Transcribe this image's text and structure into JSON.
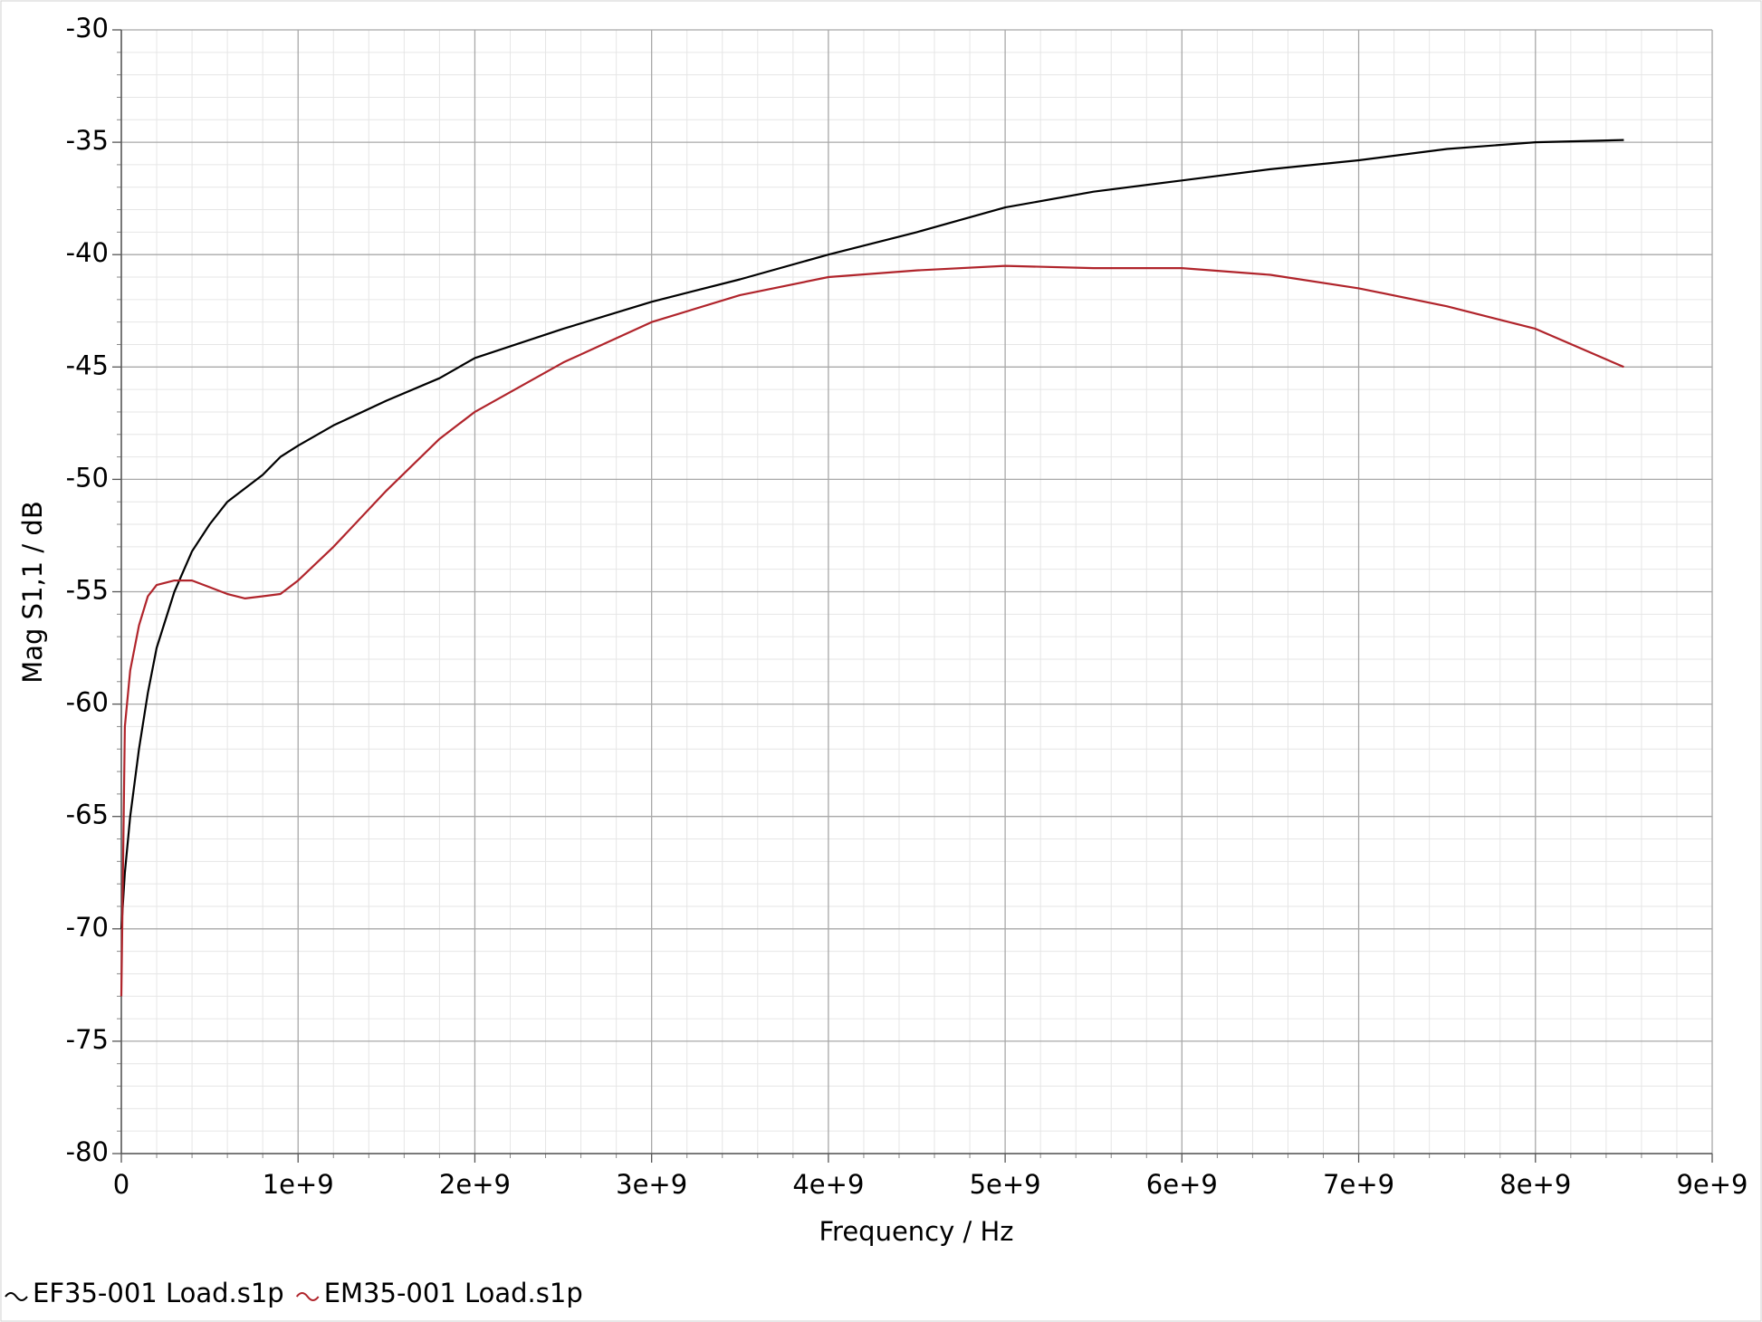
{
  "chart_data": {
    "type": "line",
    "x_label": "Frequency / Hz",
    "y_label": "Mag S1,1 / dB",
    "x": [
      0,
      20000000,
      50000000,
      100000000,
      150000000,
      200000000,
      300000000,
      400000000,
      500000000,
      600000000,
      700000000,
      800000000,
      900000000,
      1000000000,
      1200000000,
      1500000000,
      1800000000,
      2000000000,
      2500000000,
      3000000000,
      3500000000,
      4000000000,
      4500000000,
      5000000000,
      5500000000,
      6000000000,
      6500000000,
      7000000000,
      7500000000,
      8000000000,
      8500000000
    ],
    "series": [
      {
        "name": "EF35-001 Load.s1p",
        "color": "#000000",
        "values": [
          -70,
          -67.5,
          -65,
          -62,
          -59.5,
          -57.5,
          -55,
          -53.2,
          -52,
          -51,
          -50.4,
          -49.8,
          -49,
          -48.5,
          -47.6,
          -46.5,
          -45.5,
          -44.6,
          -43.3,
          -42.1,
          -41.1,
          -40,
          -39,
          -37.9,
          -37.2,
          -36.7,
          -36.2,
          -35.8,
          -35.3,
          -35,
          -34.9
        ]
      },
      {
        "name": "EM35-001 Load.s1p",
        "color": "#b0242b",
        "values": [
          -73,
          -61,
          -58.5,
          -56.5,
          -55.2,
          -54.7,
          -54.5,
          -54.5,
          -54.8,
          -55.1,
          -55.3,
          -55.2,
          -55.1,
          -54.5,
          -53,
          -50.5,
          -48.2,
          -47,
          -44.8,
          -43,
          -41.8,
          -41,
          -40.7,
          -40.5,
          -40.6,
          -40.6,
          -40.9,
          -41.5,
          -42.3,
          -43.3,
          -45
        ]
      }
    ],
    "xlim": [
      0,
      9000000000
    ],
    "xticks": [
      0,
      {
        "value": 1000000000,
        "label": "1e+9"
      },
      {
        "value": 2000000000,
        "label": "2e+9"
      },
      {
        "value": 3000000000,
        "label": "3e+9"
      },
      {
        "value": 4000000000,
        "label": "4e+9"
      },
      {
        "value": 5000000000,
        "label": "5e+9"
      },
      {
        "value": 6000000000,
        "label": "6e+9"
      },
      {
        "value": 7000000000,
        "label": "7e+9"
      },
      {
        "value": 8000000000,
        "label": "8e+9"
      },
      {
        "value": 9000000000,
        "label": "9e+9"
      }
    ],
    "ylim": [
      -80,
      -30
    ],
    "yticks": [
      -80,
      -75,
      -70,
      -65,
      -60,
      -55,
      -50,
      -45,
      -40,
      -35,
      -30
    ],
    "grid": true,
    "minor_divisions": 5,
    "legend": "bottom-left"
  }
}
